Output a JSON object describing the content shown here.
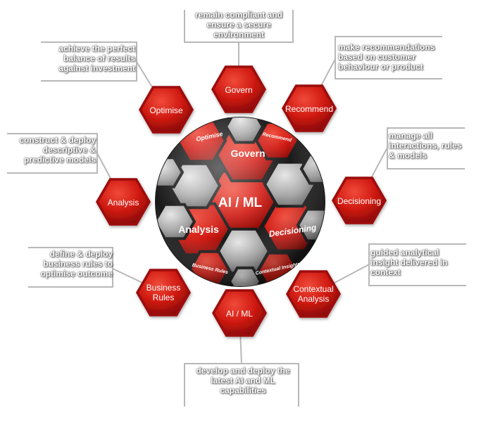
{
  "center": {
    "ball_labels": {
      "core": "AI / ML",
      "top": "Govern",
      "left": "Analysis",
      "right": "Decisioning",
      "top_left": "Optimise",
      "top_right": "Recommend",
      "bottom_left": "Business Rules",
      "bottom_right": "Contextual Insights"
    }
  },
  "nodes": [
    {
      "id": "govern",
      "label": "Govern",
      "caption": "remain compliant and ensure a secure environment"
    },
    {
      "id": "recommend",
      "label": "Recommend",
      "caption": "make recommendations based on customer behaviour or product"
    },
    {
      "id": "decisioning",
      "label": "Decisioning",
      "caption": "manage all interactions, rules & models"
    },
    {
      "id": "contextual-analysis",
      "label": "Contextual Analysis",
      "caption": "guided analytical insight delivered in context"
    },
    {
      "id": "ai-ml",
      "label": "AI / ML",
      "caption": "develop and deploy the latest AI and ML capabilities"
    },
    {
      "id": "business-rules",
      "label": "Business Rules",
      "caption": "define & deploy business rules to optimise outcome"
    },
    {
      "id": "analysis",
      "label": "Analysis",
      "caption": "construct & deploy descriptive & predictive models"
    },
    {
      "id": "optimise",
      "label": "Optimise",
      "caption": "achieve the perfect balance of results against investment"
    }
  ],
  "colors": {
    "hex_red": "#c8140f",
    "hex_dark": "#8a0a06",
    "hex_grey": "#a8a8a8",
    "line": "#b8b8b8"
  }
}
